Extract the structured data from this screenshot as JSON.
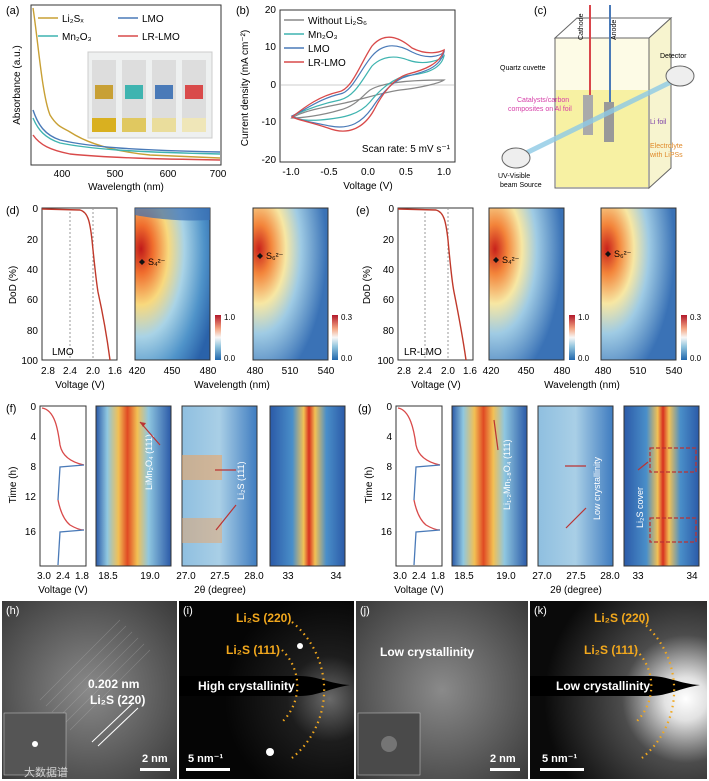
{
  "panel_a": {
    "letter": "(a)",
    "ylabel": "Absorbance (a.u.)",
    "xlabel": "Wavelength (nm)",
    "x_ticks": [
      "400",
      "500",
      "600",
      "700"
    ],
    "legend": [
      "Li₂Sₓ",
      "LMO",
      "Mn₂O₃",
      "LR-LMO"
    ]
  },
  "panel_b": {
    "letter": "(b)",
    "ylabel": "Current density (mA cm⁻²)",
    "xlabel": "Voltage (V)",
    "x_ticks": [
      "-1.0",
      "-0.5",
      "0.0",
      "0.5",
      "1.0"
    ],
    "y_ticks": [
      "20",
      "10",
      "0",
      "-10",
      "-20"
    ],
    "legend": [
      "Without Li₂S₆",
      "Mn₂O₃",
      "LMO",
      "LR-LMO"
    ],
    "note": "Scan rate: 5 mV s⁻¹"
  },
  "panel_c": {
    "letter": "(c)",
    "cathode": "Cathode",
    "anode": "Anode",
    "cuvette": "Quartz cuvette",
    "detector": "Detector",
    "catalyst_line1": "Catalysts/carbon",
    "catalyst_line2": "composites on Al foil",
    "li_foil": "Li foil",
    "source_line1": "UV-Visible",
    "source_line2": "beam Source",
    "electrolyte_line1": "Electrolyte",
    "electrolyte_line2": "with LiPSs"
  },
  "panel_d": {
    "letter": "(d)",
    "ylabel": "DoD (%)",
    "y_ticks": [
      "0",
      "20",
      "40",
      "60",
      "80",
      "100"
    ],
    "volt_ticks": [
      "2.8",
      "2.4",
      "2.0",
      "1.6"
    ],
    "volt_label": "Voltage (V)",
    "sample": "LMO",
    "wl_ticks_1": [
      "420",
      "450",
      "480"
    ],
    "wl_ticks_2": [
      "480",
      "510",
      "540"
    ],
    "wl_label": "Wavelength (nm)",
    "species_1": "S₄²⁻",
    "species_2": "S₆²⁻",
    "cbar_1": [
      "1.0",
      "0.0"
    ],
    "cbar_2": [
      "0.3",
      "0.0"
    ]
  },
  "panel_e": {
    "letter": "(e)",
    "sample": "LR-LMO",
    "species_1": "S₄²⁻",
    "species_2": "S₆²⁻",
    "cbar_1": [
      "1.0",
      "0.0"
    ],
    "cbar_2": [
      "0.3",
      "0.0"
    ]
  },
  "panel_f": {
    "letter": "(f)",
    "ylabel": "Time (h)",
    "y_ticks": [
      "0",
      "4",
      "8",
      "12",
      "16"
    ],
    "volt_ticks": [
      "3.0",
      "2.4",
      "1.8"
    ],
    "volt_label": "Voltage (V)",
    "theta_label": "2θ (degree)",
    "ticks_1": [
      "18.5",
      "19.0"
    ],
    "ticks_2": [
      "27.0",
      "27.5",
      "28.0"
    ],
    "ticks_3": [
      "33",
      "34"
    ],
    "label_1": "LiMn₂O₄ (111)",
    "label_2": "Li₂S (111)"
  },
  "panel_g": {
    "letter": "(g)",
    "ticks_3": [
      "33",
      "34"
    ],
    "label_1": "Li₁.₂Mn₁.₈O₄ (111)",
    "label_2": "Low crystallinity",
    "label_3": "Li₂S cover"
  },
  "panel_h": {
    "letter": "(h)",
    "d_spacing": "0.202 nm",
    "plane": "Li₂S (220)",
    "scale": "2 nm",
    "watermark": "大数据谱"
  },
  "panel_i": {
    "letter": "(i)",
    "ring_1": "Li₂S (220)",
    "ring_2": "Li₂S (111)",
    "center": "High crystallinity",
    "scale": "5 nm⁻¹"
  },
  "panel_j": {
    "letter": "(j)",
    "center": "Low crystallinity",
    "scale": "2 nm"
  },
  "panel_k": {
    "letter": "(k)",
    "ring_1": "Li₂S (220)",
    "ring_2": "Li₂S (111)",
    "center": "Low crystallinity",
    "scale": "5 nm⁻¹"
  },
  "colors": {
    "li2sx": "#c8a035",
    "lmo": "#4a7ab8",
    "mn2o3": "#3fb4b0",
    "lrlmo": "#d94a4a",
    "without": "#888888",
    "label_orange": "#f2a81d"
  }
}
